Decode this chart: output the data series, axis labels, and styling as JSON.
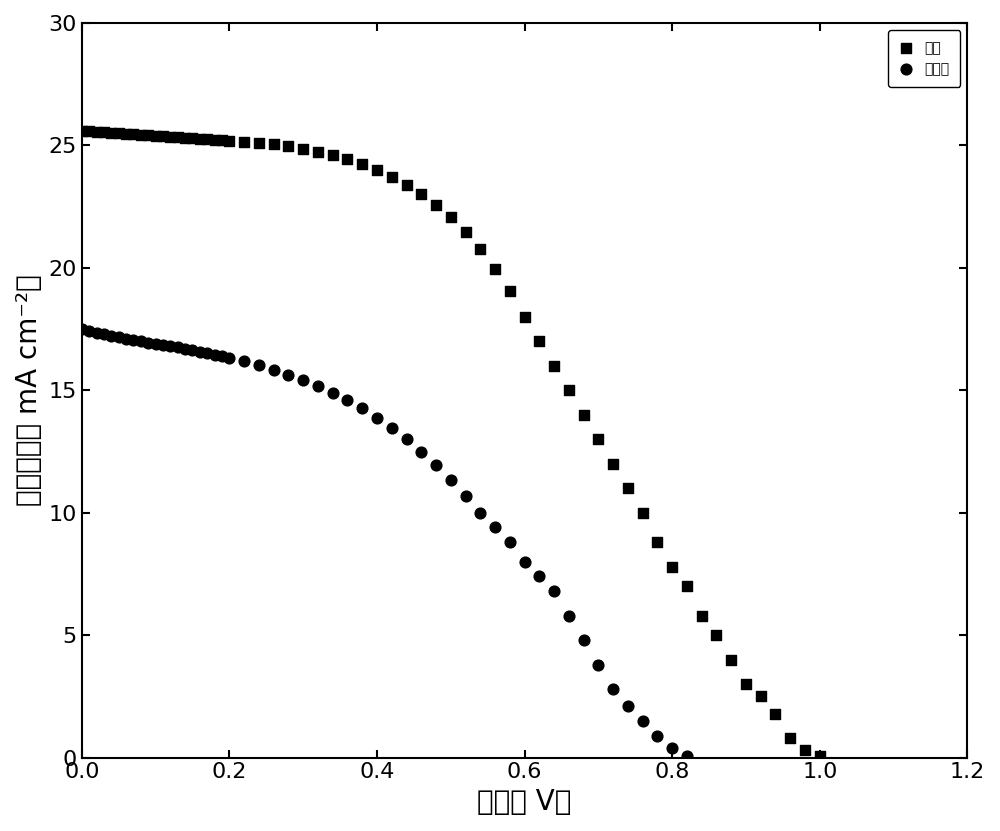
{
  "title": "",
  "xlabel_cn": "电压",
  "xlabel_unit": "V",
  "ylabel_cn": "电流密度",
  "ylabel_unit": "mA cm⁻²",
  "xlim": [
    0.0,
    1.2
  ],
  "ylim": [
    0,
    30
  ],
  "xticks": [
    0.0,
    0.2,
    0.4,
    0.6,
    0.8,
    1.0,
    1.2
  ],
  "yticks": [
    0,
    5,
    10,
    15,
    20,
    25,
    30
  ],
  "legend_label_treated": "处理",
  "legend_label_untreated": "未处理",
  "treated_x": [
    0.0,
    0.01,
    0.02,
    0.03,
    0.04,
    0.05,
    0.06,
    0.07,
    0.08,
    0.09,
    0.1,
    0.11,
    0.12,
    0.13,
    0.14,
    0.15,
    0.16,
    0.17,
    0.18,
    0.19,
    0.2,
    0.22,
    0.24,
    0.26,
    0.28,
    0.3,
    0.32,
    0.34,
    0.36,
    0.38,
    0.4,
    0.42,
    0.44,
    0.46,
    0.48,
    0.5,
    0.52,
    0.54,
    0.56,
    0.58,
    0.6,
    0.62,
    0.64,
    0.66,
    0.68,
    0.7,
    0.72,
    0.74,
    0.76,
    0.78,
    0.8,
    0.82,
    0.84,
    0.86,
    0.88,
    0.9,
    0.92,
    0.94,
    0.96,
    0.98,
    1.0
  ],
  "treated_y": [
    25.6,
    25.58,
    25.56,
    25.54,
    25.52,
    25.5,
    25.48,
    25.46,
    25.44,
    25.42,
    25.4,
    25.38,
    25.36,
    25.34,
    25.32,
    25.3,
    25.28,
    25.26,
    25.24,
    25.22,
    25.2,
    25.16,
    25.1,
    25.04,
    24.96,
    24.86,
    24.74,
    24.6,
    24.44,
    24.24,
    24.0,
    23.72,
    23.4,
    23.02,
    22.58,
    22.06,
    21.46,
    20.76,
    19.96,
    19.05,
    18.0,
    17.0,
    16.0,
    15.0,
    14.0,
    13.0,
    12.0,
    11.0,
    10.0,
    8.8,
    7.8,
    7.0,
    5.8,
    5.0,
    4.0,
    3.0,
    2.5,
    1.8,
    0.8,
    0.3,
    0.05
  ],
  "untreated_x": [
    0.0,
    0.01,
    0.02,
    0.03,
    0.04,
    0.05,
    0.06,
    0.07,
    0.08,
    0.09,
    0.1,
    0.11,
    0.12,
    0.13,
    0.14,
    0.15,
    0.16,
    0.17,
    0.18,
    0.19,
    0.2,
    0.22,
    0.24,
    0.26,
    0.28,
    0.3,
    0.32,
    0.34,
    0.36,
    0.38,
    0.4,
    0.42,
    0.44,
    0.46,
    0.48,
    0.5,
    0.52,
    0.54,
    0.56,
    0.58,
    0.6,
    0.62,
    0.64,
    0.66,
    0.68,
    0.7,
    0.72,
    0.74,
    0.76,
    0.78,
    0.8,
    0.82
  ],
  "untreated_y": [
    17.5,
    17.42,
    17.35,
    17.28,
    17.22,
    17.16,
    17.1,
    17.05,
    17.0,
    16.95,
    16.9,
    16.85,
    16.8,
    16.75,
    16.7,
    16.64,
    16.58,
    16.52,
    16.46,
    16.4,
    16.33,
    16.18,
    16.02,
    15.84,
    15.64,
    15.42,
    15.18,
    14.9,
    14.6,
    14.26,
    13.88,
    13.46,
    13.0,
    12.5,
    11.95,
    11.35,
    10.7,
    10.0,
    9.4,
    8.8,
    8.0,
    7.4,
    6.8,
    5.8,
    4.8,
    3.8,
    2.8,
    2.1,
    1.5,
    0.9,
    0.4,
    0.05
  ],
  "marker_color": "#000000",
  "background_color": "#ffffff",
  "marker_size_sq": 60,
  "marker_size_circ": 60
}
